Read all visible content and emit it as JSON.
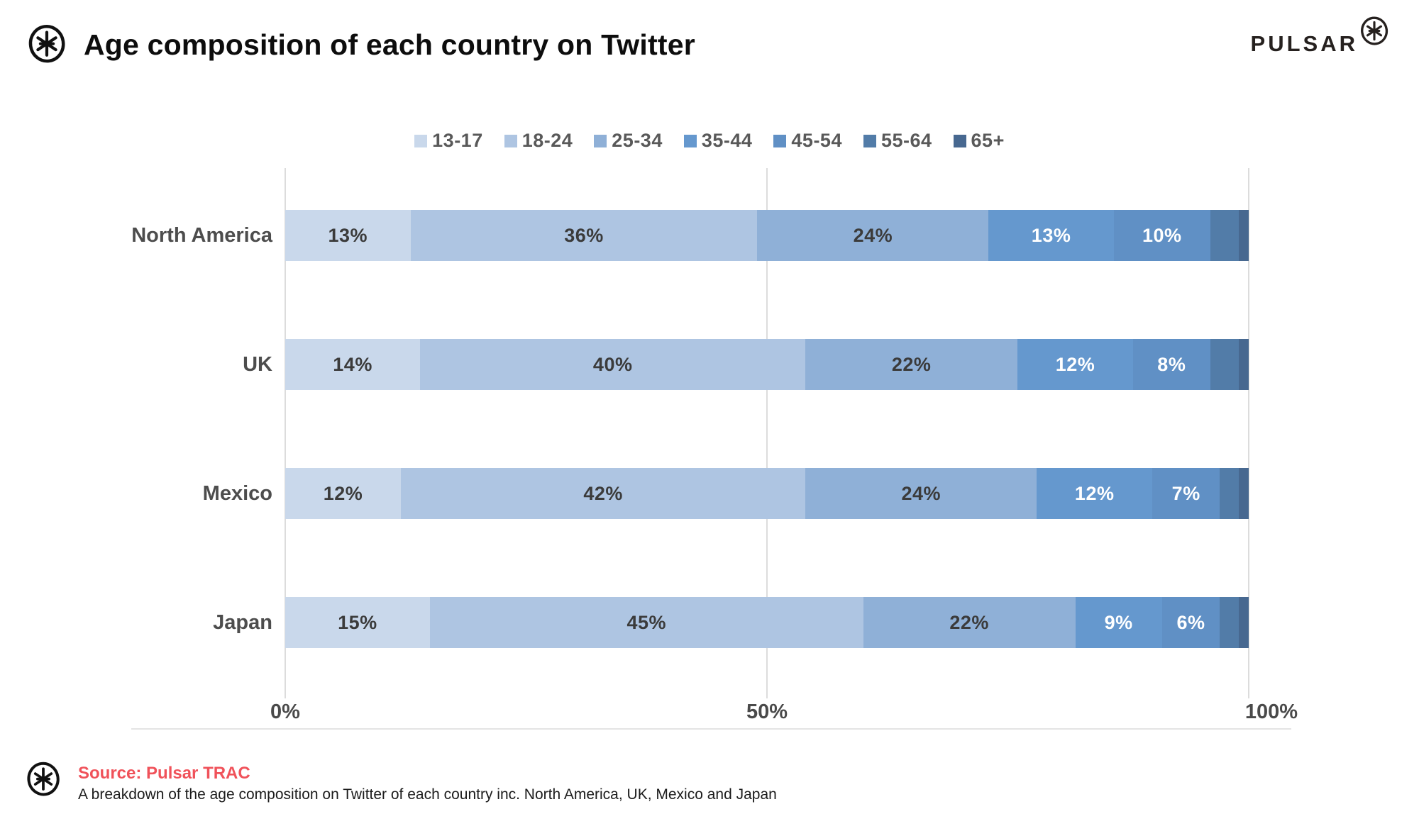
{
  "header": {
    "title": "Age composition of each country on Twitter",
    "brand": "PULSAR"
  },
  "colors": {
    "legend_text": "#595959",
    "country_label_text": "#4d4d4d",
    "axis_text": "#4a4a4a",
    "gridline": "#dcdcdc",
    "dark_segment_label": "#3b3b3b",
    "light_segment_label": "#ffffff",
    "source_accent": "#f0525a"
  },
  "chart_data": {
    "type": "bar",
    "orientation": "horizontal-stacked",
    "title": "Age composition of each country on Twitter",
    "categories": [
      "North America",
      "UK",
      "Mexico",
      "Japan"
    ],
    "series": [
      {
        "name": "13-17",
        "color": "#c9d8eb",
        "label_color": "#3b3b3b",
        "values": [
          13,
          14,
          12,
          15
        ]
      },
      {
        "name": "18-24",
        "color": "#aec5e2",
        "label_color": "#3b3b3b",
        "values": [
          36,
          40,
          42,
          45
        ]
      },
      {
        "name": "25-34",
        "color": "#8fb0d7",
        "label_color": "#3b3b3b",
        "values": [
          24,
          22,
          24,
          22
        ]
      },
      {
        "name": "35-44",
        "color": "#6598ce",
        "label_color": "#ffffff",
        "values": [
          13,
          12,
          12,
          9
        ]
      },
      {
        "name": "45-54",
        "color": "#6090c5",
        "label_color": "#ffffff",
        "values": [
          10,
          8,
          7,
          6
        ]
      },
      {
        "name": "55-64",
        "color": "#527ca8",
        "label_color": "#ffffff",
        "values": [
          3,
          3,
          2,
          2
        ]
      },
      {
        "name": "65+",
        "color": "#476890",
        "label_color": "#ffffff",
        "values": [
          1,
          1,
          1,
          1
        ]
      }
    ],
    "x_ticks": [
      {
        "label": "0%",
        "value": 0
      },
      {
        "label": "50%",
        "value": 50
      },
      {
        "label": "100%",
        "value": 100
      }
    ],
    "xlim": [
      0,
      100
    ],
    "grid": "vertical-lines-at-ticks",
    "legend_position": "top-center",
    "label_min_value_shown": 6
  },
  "footer": {
    "source_label": "Source: Pulsar TRAC",
    "description": "A breakdown of the age composition on Twitter of each country inc. North America, UK, Mexico and Japan"
  }
}
